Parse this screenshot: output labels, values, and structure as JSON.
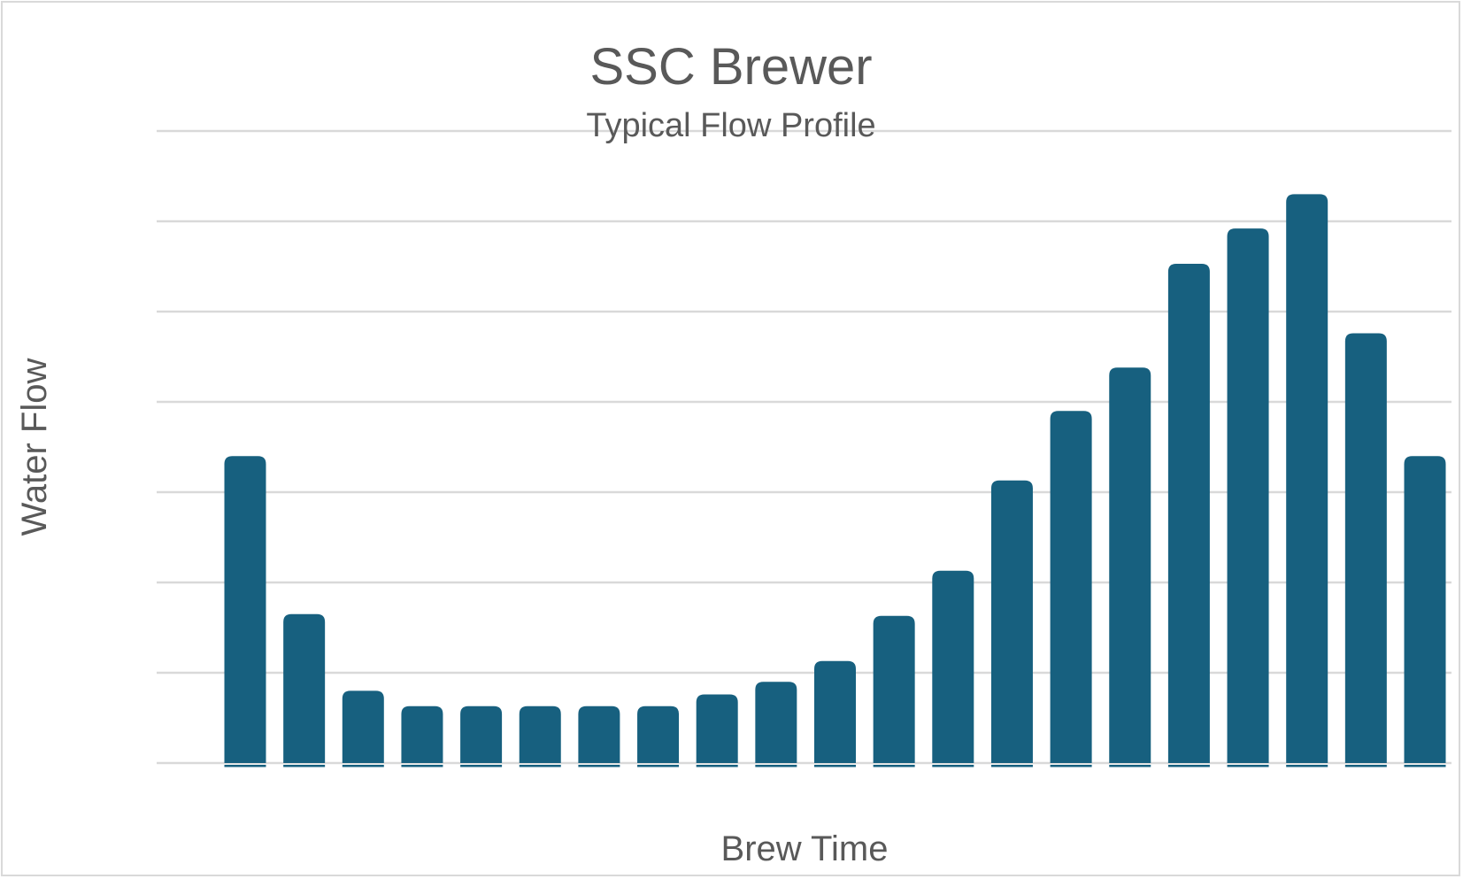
{
  "chart_data": {
    "type": "bar",
    "title": "SSC Brewer",
    "subtitle": "Typical Flow Profile",
    "xlabel": "Brew Time",
    "ylabel": "Water Flow",
    "categories": [
      "",
      "",
      "",
      "",
      "",
      "",
      "",
      "",
      "",
      "",
      "",
      "",
      "",
      "",
      "",
      "",
      "",
      "",
      "",
      "",
      ""
    ],
    "values": [
      3.4,
      1.65,
      0.8,
      0.63,
      0.63,
      0.63,
      0.63,
      0.63,
      0.76,
      0.9,
      1.13,
      1.63,
      2.13,
      3.13,
      3.9,
      4.38,
      5.53,
      5.92,
      6.3,
      4.76,
      3.4
    ],
    "ylim": [
      0,
      7
    ],
    "grid": true,
    "legend": "none",
    "colors": {
      "bar": "#17607f",
      "grid": "#d9d9d9",
      "text": "#595959"
    }
  }
}
